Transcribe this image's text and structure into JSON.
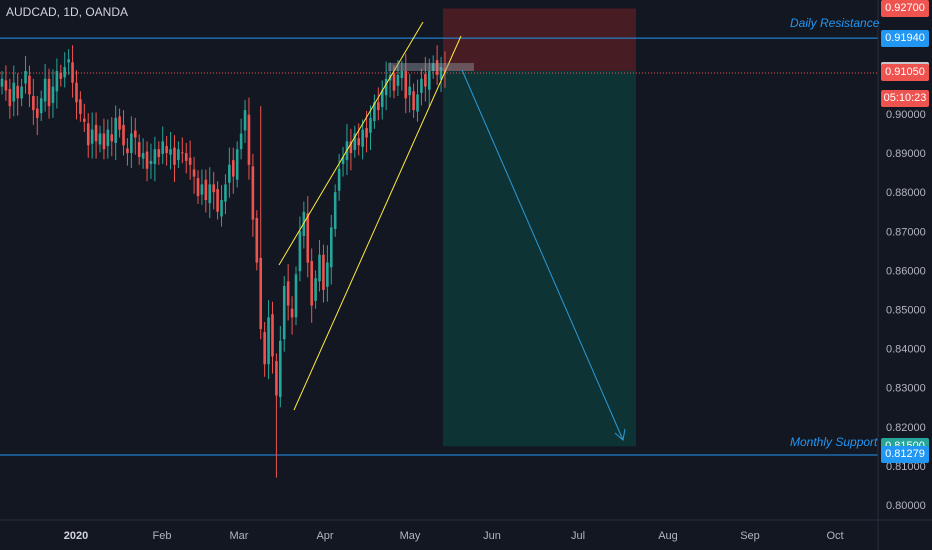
{
  "header": {
    "title": "AUDCAD, 1D, OANDA"
  },
  "colors": {
    "background": "#131722",
    "up": "#26a69a",
    "down": "#ef5350",
    "channel": "#ffeb3b",
    "level": "#2196f3",
    "stop_zone": "#4a1c24",
    "target_zone": "#0e3537",
    "arrow": "#2b9ad6"
  },
  "chart_data": {
    "type": "candlestick",
    "symbol": "AUDCAD",
    "timeframe": "1D",
    "source": "OANDA",
    "y_ticks": [
      "0.80000",
      "0.81000",
      "0.82000",
      "0.83000",
      "0.84000",
      "0.85000",
      "0.86000",
      "0.87000",
      "0.88000",
      "0.89000",
      "0.90000"
    ],
    "x_ticks": [
      {
        "label": "2020",
        "bold": true
      },
      {
        "label": "Feb"
      },
      {
        "label": "Mar"
      },
      {
        "label": "Apr"
      },
      {
        "label": "May"
      },
      {
        "label": "Jun"
      },
      {
        "label": "Jul"
      },
      {
        "label": "Aug"
      },
      {
        "label": "Sep"
      },
      {
        "label": "Oct"
      }
    ],
    "price_tags": [
      {
        "label": "0.92700",
        "price": 0.927,
        "style": "red"
      },
      {
        "label": "0.91940",
        "price": 0.9194,
        "style": "blue"
      },
      {
        "label": "0.91100",
        "price": 0.911,
        "style": "gray"
      },
      {
        "label": "0.91050",
        "price": 0.9105,
        "style": "red"
      },
      {
        "label": "05:10:23",
        "style": "red-countdown"
      },
      {
        "label": "0.81500",
        "price": 0.815,
        "style": "green"
      },
      {
        "label": "0.81279",
        "price": 0.81279,
        "style": "blue"
      }
    ],
    "levels": [
      {
        "name": "Daily Resistance",
        "price": 0.9194
      },
      {
        "name": "Monthly Support",
        "price": 0.81279
      }
    ],
    "position": {
      "entry": 0.911,
      "stop": 0.927,
      "target": 0.815
    },
    "current_price": 0.9105,
    "closes": [
      0.909,
      0.906,
      0.902,
      0.908,
      0.904,
      0.907,
      0.911,
      0.905,
      0.901,
      0.899,
      0.904,
      0.909,
      0.902,
      0.907,
      0.911,
      0.909,
      0.912,
      0.914,
      0.908,
      0.903,
      0.9,
      0.898,
      0.892,
      0.896,
      0.893,
      0.895,
      0.891,
      0.896,
      0.893,
      0.899,
      0.896,
      0.892,
      0.89,
      0.895,
      0.894,
      0.889,
      0.89,
      0.886,
      0.888,
      0.891,
      0.889,
      0.893,
      0.89,
      0.891,
      0.887,
      0.891,
      0.89,
      0.888,
      0.887,
      0.884,
      0.879,
      0.882,
      0.878,
      0.882,
      0.88,
      0.875,
      0.878,
      0.882,
      0.887,
      0.884,
      0.891,
      0.895,
      0.901,
      0.887,
      0.873,
      0.862,
      0.845,
      0.836,
      0.848,
      0.838,
      0.828,
      0.842,
      0.856,
      0.851,
      0.848,
      0.859,
      0.87,
      0.875,
      0.862,
      0.851,
      0.858,
      0.864,
      0.855,
      0.862,
      0.871,
      0.88,
      0.886,
      0.889,
      0.893,
      0.89,
      0.895,
      0.892,
      0.896,
      0.894,
      0.899,
      0.903,
      0.901,
      0.906,
      0.909,
      0.91,
      0.906,
      0.91,
      0.911,
      0.904,
      0.907,
      0.901,
      0.905,
      0.909,
      0.907,
      0.911,
      0.913,
      0.91,
      0.912,
      0.9105
    ]
  },
  "annotations": {
    "daily_resistance": "Daily Resistance",
    "monthly_support": "Monthly Support"
  }
}
